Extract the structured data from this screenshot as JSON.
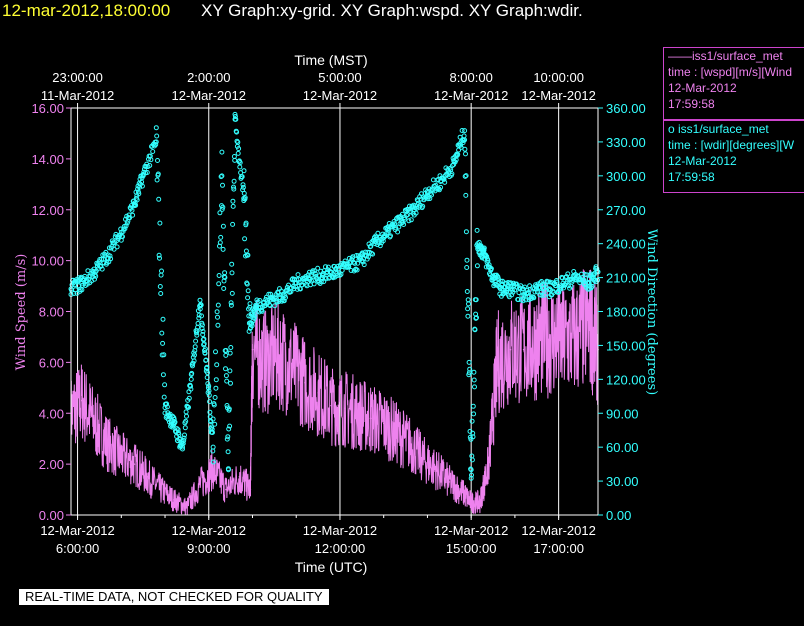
{
  "header": {
    "datetime": "12-mar-2012,18:00:00",
    "graphs": "XY Graph:xy-grid.  XY Graph:wspd.  XY Graph:wdir."
  },
  "legend": {
    "wspd": {
      "title": "——iss1/surface_met",
      "variable": "time : [wspd][m/s][Wind",
      "date": "12-Mar-2012",
      "time": "17:59:58"
    },
    "wdir": {
      "title": "o  iss1/surface_met",
      "variable": "time : [wdir][degrees][W",
      "date": "12-Mar-2012",
      "time": "17:59:58"
    }
  },
  "footer_note": "REAL-TIME DATA, NOT CHECKED FOR QUALITY",
  "colors": {
    "wspd": "#ee82ee",
    "wdir": "#33ffff",
    "grid": "#ffffff",
    "header_time": "#ffff33"
  },
  "chart_data": {
    "type": "scatter",
    "x_top_label": "Time (MST)",
    "x_bottom_label": "Time (UTC)",
    "y_left_label": "Wind Speed (m/s)",
    "y_right_label": "Wind Direction (degrees)",
    "x_range_utc_hours": [
      5.85,
      17.9
    ],
    "ylim_left": [
      0,
      16
    ],
    "ylim_right": [
      0,
      360
    ],
    "y_left_ticks": [
      "0.00",
      "2.00",
      "4.00",
      "6.00",
      "8.00",
      "10.00",
      "12.00",
      "14.00",
      "16.00"
    ],
    "y_right_ticks": [
      "0.00",
      "30.00",
      "60.00",
      "90.00",
      "120.00",
      "150.00",
      "180.00",
      "210.00",
      "240.00",
      "270.00",
      "300.00",
      "330.00",
      "360.00"
    ],
    "x_bottom_ticks": [
      {
        "hour": 6,
        "line1": "12-Mar-2012",
        "line2": "6:00:00"
      },
      {
        "hour": 9,
        "line1": "12-Mar-2012",
        "line2": "9:00:00"
      },
      {
        "hour": 12,
        "line1": "12-Mar-2012",
        "line2": "12:00:00"
      },
      {
        "hour": 15,
        "line1": "12-Mar-2012",
        "line2": "15:00:00"
      },
      {
        "hour": 17,
        "line1": "12-Mar-2012",
        "line2": "17:00:00"
      }
    ],
    "x_top_ticks": [
      {
        "hour": 6,
        "line1": "23:00:00",
        "line2": "11-Mar-2012"
      },
      {
        "hour": 9,
        "line1": "2:00:00",
        "line2": "12-Mar-2012"
      },
      {
        "hour": 12,
        "line1": "5:00:00",
        "line2": "12-Mar-2012"
      },
      {
        "hour": 15,
        "line1": "8:00:00",
        "line2": "12-Mar-2012"
      },
      {
        "hour": 17,
        "line1": "10:00:00",
        "line2": "12-Mar-2012"
      }
    ],
    "grid": true,
    "series": [
      {
        "name": "wspd",
        "style": "line",
        "axis": "left",
        "x": [
          5.85,
          6.1,
          6.4,
          6.7,
          7.0,
          7.3,
          7.6,
          7.9,
          8.2,
          8.5,
          8.8,
          9.1,
          9.4,
          9.7,
          9.95,
          10.0,
          10.3,
          10.6,
          10.9,
          11.2,
          11.5,
          11.8,
          12.1,
          12.4,
          12.7,
          13.0,
          13.3,
          13.6,
          13.9,
          14.2,
          14.5,
          14.8,
          15.0,
          15.2,
          15.4,
          15.6,
          15.9,
          16.2,
          16.5,
          16.8,
          17.1,
          17.4,
          17.7,
          17.9
        ],
        "y": [
          4.0,
          4.5,
          3.6,
          2.8,
          2.3,
          2.0,
          1.5,
          1.0,
          0.6,
          0.3,
          1.2,
          1.8,
          1.0,
          1.5,
          1.0,
          6.5,
          6.0,
          6.3,
          5.8,
          5.2,
          4.8,
          4.3,
          4.2,
          4.0,
          3.8,
          3.6,
          3.2,
          2.8,
          2.2,
          1.8,
          1.3,
          0.9,
          0.5,
          0.5,
          2.0,
          6.0,
          6.5,
          6.5,
          6.8,
          7.0,
          6.8,
          7.0,
          7.5,
          6.5
        ]
      },
      {
        "name": "wdir",
        "style": "markers",
        "axis": "right",
        "x": [
          5.85,
          6.1,
          6.4,
          6.7,
          7.0,
          7.3,
          7.5,
          7.8,
          8.0,
          8.2,
          8.4,
          8.6,
          8.8,
          8.95,
          9.1,
          9.3,
          9.45,
          9.6,
          9.8,
          9.95,
          10.1,
          10.4,
          10.7,
          11.0,
          11.3,
          11.6,
          11.9,
          12.2,
          12.5,
          12.8,
          13.1,
          13.4,
          13.7,
          14.0,
          14.3,
          14.6,
          14.85,
          15.0,
          15.15,
          15.3,
          15.5,
          15.7,
          15.9,
          16.2,
          16.5,
          16.8,
          17.1,
          17.4,
          17.7,
          17.9
        ],
        "y": [
          200,
          205,
          215,
          230,
          250,
          275,
          300,
          330,
          95,
          80,
          60,
          120,
          190,
          130,
          60,
          300,
          40,
          350,
          280,
          170,
          185,
          190,
          195,
          205,
          210,
          212,
          215,
          220,
          225,
          240,
          250,
          260,
          270,
          285,
          295,
          310,
          340,
          40,
          240,
          230,
          210,
          200,
          200,
          195,
          200,
          200,
          205,
          210,
          205,
          215
        ]
      }
    ]
  }
}
